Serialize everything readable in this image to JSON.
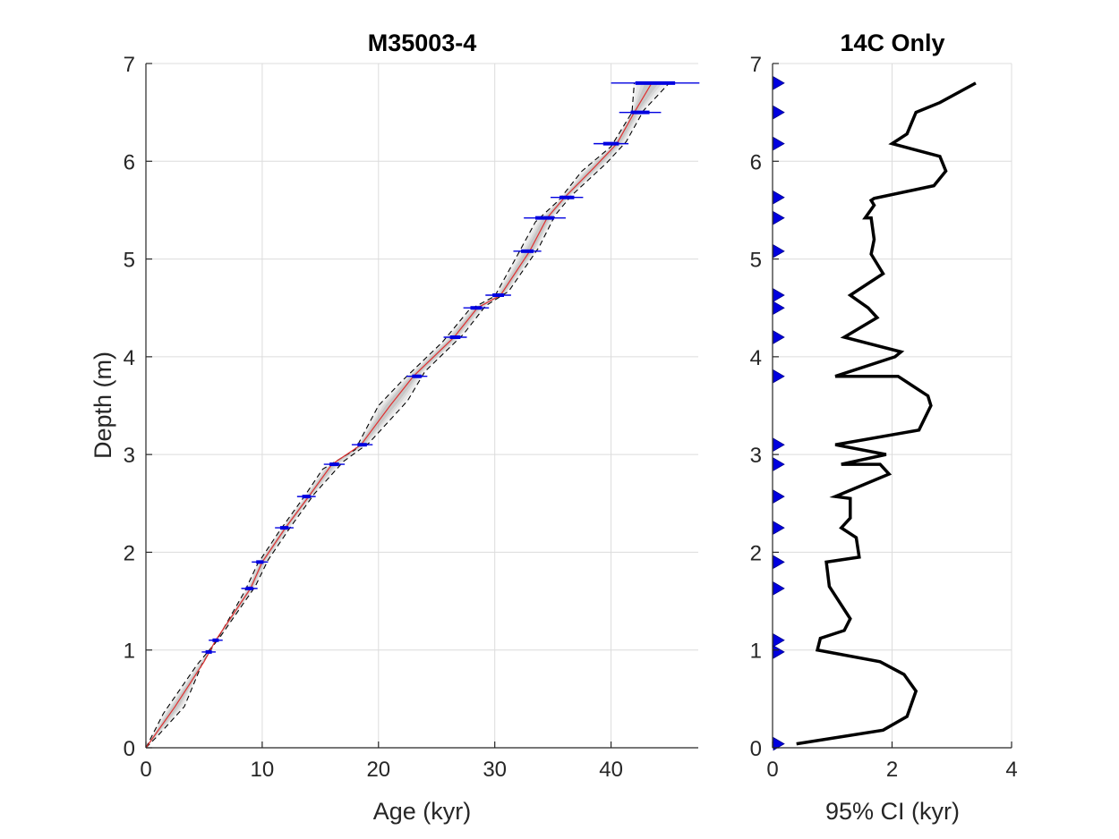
{
  "chart_data": [
    {
      "type": "line",
      "title": "M35003-4",
      "xlabel": "Age (kyr)",
      "ylabel": "Depth (m)",
      "xlim": [
        0,
        47.5
      ],
      "ylim": [
        0,
        7
      ],
      "xticks": [
        0,
        10,
        20,
        30,
        40
      ],
      "yticks": [
        0,
        1,
        2,
        3,
        4,
        5,
        6,
        7
      ],
      "grid": true,
      "colors": {
        "median": "#e03030",
        "ci": "#000000",
        "shading": "#9a9a9a",
        "dates": "#0000e0"
      },
      "median": [
        [
          0,
          0
        ],
        [
          2.5,
          0.42
        ],
        [
          5.0,
          0.88
        ],
        [
          6.0,
          1.1
        ],
        [
          9.0,
          1.63
        ],
        [
          10.0,
          1.9
        ],
        [
          12.0,
          2.25
        ],
        [
          14.0,
          2.57
        ],
        [
          16.0,
          2.9
        ],
        [
          18.5,
          3.1
        ],
        [
          21.0,
          3.5
        ],
        [
          23.0,
          3.8
        ],
        [
          26.5,
          4.2
        ],
        [
          28.5,
          4.5
        ],
        [
          30.5,
          4.63
        ],
        [
          33.0,
          5.08
        ],
        [
          34.5,
          5.42
        ],
        [
          36.0,
          5.63
        ],
        [
          38.5,
          5.93
        ],
        [
          40.5,
          6.18
        ],
        [
          42.0,
          6.5
        ],
        [
          43.5,
          6.8
        ]
      ],
      "ci_lower": [
        [
          0,
          0
        ],
        [
          1.0,
          0.12
        ],
        [
          3.3,
          0.42
        ],
        [
          4.8,
          0.85
        ],
        [
          6.0,
          1.08
        ],
        [
          8.5,
          1.6
        ],
        [
          9.6,
          1.88
        ],
        [
          11.5,
          2.22
        ],
        [
          13.5,
          2.55
        ],
        [
          15.2,
          2.85
        ],
        [
          18.0,
          3.05
        ],
        [
          20.0,
          3.5
        ],
        [
          22.0,
          3.75
        ],
        [
          25.5,
          4.15
        ],
        [
          27.8,
          4.48
        ],
        [
          30.0,
          4.62
        ],
        [
          32.0,
          5.05
        ],
        [
          33.5,
          5.38
        ],
        [
          35.5,
          5.6
        ],
        [
          37.5,
          5.9
        ],
        [
          40.0,
          6.15
        ],
        [
          41.8,
          6.5
        ],
        [
          42.0,
          6.8
        ]
      ],
      "ci_upper": [
        [
          0,
          0
        ],
        [
          1.5,
          0.35
        ],
        [
          4.4,
          0.85
        ],
        [
          6.3,
          1.12
        ],
        [
          9.4,
          1.65
        ],
        [
          10.5,
          1.92
        ],
        [
          12.5,
          2.27
        ],
        [
          14.5,
          2.6
        ],
        [
          17.0,
          2.93
        ],
        [
          19.2,
          3.12
        ],
        [
          22.5,
          3.55
        ],
        [
          24.0,
          3.85
        ],
        [
          27.3,
          4.23
        ],
        [
          29.2,
          4.52
        ],
        [
          31.2,
          4.67
        ],
        [
          33.8,
          5.12
        ],
        [
          35.2,
          5.45
        ],
        [
          36.6,
          5.65
        ],
        [
          39.6,
          5.98
        ],
        [
          41.3,
          6.2
        ],
        [
          42.8,
          6.52
        ],
        [
          45.0,
          6.8
        ]
      ],
      "dates": [
        {
          "depth": 0.98,
          "age": 5.4,
          "err": 0.6
        },
        {
          "depth": 1.1,
          "age": 6.0,
          "err": 0.6
        },
        {
          "depth": 1.63,
          "age": 8.9,
          "err": 0.7
        },
        {
          "depth": 1.9,
          "age": 9.8,
          "err": 0.7
        },
        {
          "depth": 2.25,
          "age": 11.9,
          "err": 0.8
        },
        {
          "depth": 2.57,
          "age": 13.8,
          "err": 0.8
        },
        {
          "depth": 2.9,
          "age": 16.2,
          "err": 0.9
        },
        {
          "depth": 3.1,
          "age": 18.6,
          "err": 0.9
        },
        {
          "depth": 3.8,
          "age": 23.3,
          "err": 0.9
        },
        {
          "depth": 4.2,
          "age": 26.6,
          "err": 1.0
        },
        {
          "depth": 4.5,
          "age": 28.4,
          "err": 1.1
        },
        {
          "depth": 4.63,
          "age": 30.3,
          "err": 1.1
        },
        {
          "depth": 5.08,
          "age": 32.8,
          "err": 1.2
        },
        {
          "depth": 5.42,
          "age": 34.3,
          "err": 1.8
        },
        {
          "depth": 5.63,
          "age": 36.2,
          "err": 1.4
        },
        {
          "depth": 6.18,
          "age": 40.0,
          "err": 1.5
        },
        {
          "depth": 6.5,
          "age": 42.5,
          "err": 1.8
        },
        {
          "depth": 6.8,
          "age": 43.8,
          "err": 3.8
        }
      ]
    },
    {
      "type": "line",
      "title": "14C Only",
      "xlabel": "95% CI (kyr)",
      "ylabel": "",
      "xlim": [
        0,
        4
      ],
      "ylim": [
        0,
        7
      ],
      "xticks": [
        0,
        2,
        4
      ],
      "yticks": [
        0,
        1,
        2,
        3,
        4,
        5,
        6,
        7
      ],
      "grid": true,
      "colors": {
        "line": "#000000",
        "markers": "#0000e0"
      },
      "series": [
        {
          "points": [
            [
              0.4,
              0.04
            ],
            [
              1.85,
              0.18
            ],
            [
              2.25,
              0.32
            ],
            [
              2.4,
              0.58
            ],
            [
              2.2,
              0.75
            ],
            [
              1.8,
              0.88
            ],
            [
              0.75,
              1.0
            ],
            [
              0.8,
              1.12
            ],
            [
              1.2,
              1.2
            ],
            [
              1.3,
              1.32
            ],
            [
              0.95,
              1.65
            ],
            [
              0.9,
              1.9
            ],
            [
              1.45,
              1.95
            ],
            [
              1.4,
              2.15
            ],
            [
              1.15,
              2.25
            ],
            [
              1.3,
              2.35
            ],
            [
              1.3,
              2.55
            ],
            [
              1.05,
              2.57
            ],
            [
              1.95,
              2.8
            ],
            [
              1.8,
              2.9
            ],
            [
              1.15,
              2.9
            ],
            [
              1.9,
              3.0
            ],
            [
              1.05,
              3.1
            ],
            [
              2.45,
              3.25
            ],
            [
              2.65,
              3.5
            ],
            [
              2.6,
              3.6
            ],
            [
              2.1,
              3.8
            ],
            [
              1.05,
              3.8
            ],
            [
              2.05,
              4.0
            ],
            [
              2.15,
              4.05
            ],
            [
              1.2,
              4.2
            ],
            [
              1.75,
              4.4
            ],
            [
              1.6,
              4.5
            ],
            [
              1.3,
              4.63
            ],
            [
              1.6,
              4.75
            ],
            [
              1.85,
              4.85
            ],
            [
              1.65,
              5.05
            ],
            [
              1.7,
              5.2
            ],
            [
              1.65,
              5.42
            ],
            [
              1.55,
              5.42
            ],
            [
              1.7,
              5.55
            ],
            [
              1.65,
              5.6
            ],
            [
              1.7,
              5.62
            ],
            [
              2.7,
              5.75
            ],
            [
              2.9,
              5.9
            ],
            [
              2.8,
              6.05
            ],
            [
              2.0,
              6.18
            ],
            [
              2.25,
              6.28
            ],
            [
              2.4,
              6.5
            ],
            [
              2.8,
              6.6
            ],
            [
              3.4,
              6.8
            ]
          ]
        }
      ],
      "markers_depths": [
        0.04,
        0.98,
        1.1,
        1.63,
        1.9,
        2.25,
        2.57,
        2.9,
        3.1,
        3.8,
        4.2,
        4.5,
        4.63,
        5.08,
        5.42,
        5.63,
        6.18,
        6.5,
        6.8
      ]
    }
  ]
}
